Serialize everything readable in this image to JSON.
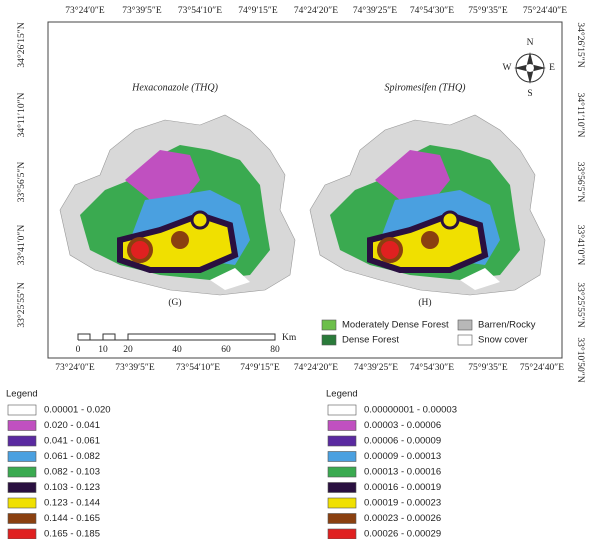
{
  "top_labels": [
    "73°24′0″E",
    "73°39′5″E",
    "73°54′10″E",
    "74°9′15″E",
    "74°24′20″E",
    "74°39′25″E",
    "74°54′30″E",
    "75°9′35″E",
    "75°24′40″E"
  ],
  "bottom_labels": [
    "73°24′0″E",
    "73°39′5″E",
    "73°54′10″E",
    "74°9′15″E",
    "74°24′20″E",
    "74°39′25″E",
    "74°54′30″E",
    "75°9′35″E",
    "75°24′40″E"
  ],
  "left_labels": [
    "34°26′15″N",
    "34°11′10″N",
    "33°56′5″N",
    "33°41′0″N",
    "33°25′55″N"
  ],
  "right_labels": [
    "34°26′15″N",
    "34°11′10″N",
    "33°56′5″N",
    "33°41′0″N",
    "33°25′55″N",
    "33°10′50″N"
  ],
  "maps": [
    {
      "title": "Hexaconazole (THQ)",
      "panel": "(G)"
    },
    {
      "title": "Spiromesifen (THQ)",
      "panel": "(H)"
    }
  ],
  "scale": {
    "ticks": [
      "0",
      "10",
      "20",
      "40",
      "60",
      "80"
    ],
    "unit": "Km"
  },
  "compass": {
    "n": "N",
    "s": "S",
    "e": "E",
    "w": "W"
  },
  "land_cover_legend": [
    {
      "label": "Moderately Dense Forest",
      "color": "#6cbf4a"
    },
    {
      "label": "Dense Forest",
      "color": "#2a7a3a"
    },
    {
      "label": "Barren/Rocky",
      "color": "#b8b8b8"
    },
    {
      "label": "Snow cover",
      "color": "#ffffff"
    }
  ],
  "legends": [
    {
      "title": "Legend",
      "items": [
        {
          "label": "0.00001 - 0.020",
          "color": "#ffffff"
        },
        {
          "label": "0.020 - 0.041",
          "color": "#c050c0"
        },
        {
          "label": "0.041 - 0.061",
          "color": "#5a2aa0"
        },
        {
          "label": "0.061 - 0.082",
          "color": "#4aa0e0"
        },
        {
          "label": "0.082 - 0.103",
          "color": "#3aaa50"
        },
        {
          "label": "0.103 - 0.123",
          "color": "#2a1040"
        },
        {
          "label": "0.123 - 0.144",
          "color": "#f0e000"
        },
        {
          "label": "0.144 - 0.165",
          "color": "#8a4010"
        },
        {
          "label": "0.165 - 0.185",
          "color": "#e02020"
        }
      ]
    },
    {
      "title": "Legend",
      "items": [
        {
          "label": "0.00000001 - 0.00003",
          "color": "#ffffff"
        },
        {
          "label": "0.00003 - 0.00006",
          "color": "#c050c0"
        },
        {
          "label": "0.00006 - 0.00009",
          "color": "#5a2aa0"
        },
        {
          "label": "0.00009 - 0.00013",
          "color": "#4aa0e0"
        },
        {
          "label": "0.00013 - 0.00016",
          "color": "#3aaa50"
        },
        {
          "label": "0.00016 - 0.00019",
          "color": "#2a1040"
        },
        {
          "label": "0.00019 - 0.00023",
          "color": "#f0e000"
        },
        {
          "label": "0.00023 - 0.00026",
          "color": "#8a4010"
        },
        {
          "label": "0.00026 - 0.00029",
          "color": "#e02020"
        }
      ]
    }
  ]
}
